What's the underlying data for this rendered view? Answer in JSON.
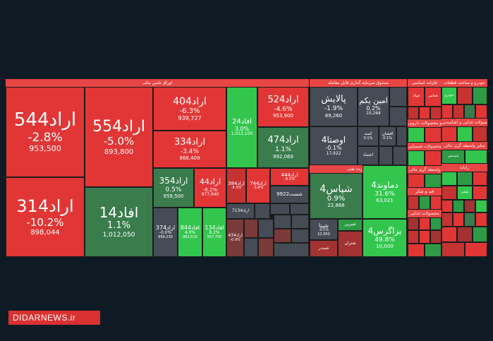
{
  "sections": {
    "bonds": "اوراق تامین مالی",
    "funds": "صندوق سرمایه گذاری قابل معامله",
    "metals": "فلزات اساسی",
    "cars": "خودرو و ساخت قطعات",
    "chemicals": "محصولات شیمیایی",
    "tech": "رایانه",
    "edible": "محصولات غذایی و آشامیدنی",
    "sugar": "قند و شکر",
    "oil": "فرآورده نفتی",
    "financial": "واسطه گری مالی",
    "pharma": "مواد و محصولات دارویی",
    "credit": "سایر واسطه گری مالی",
    "misc": "محصولات غذایی"
  },
  "tiles": {
    "arad544": {
      "name": "اراد544",
      "pct": "-2.8%",
      "vol": "953,500"
    },
    "arad554": {
      "name": "اراد554",
      "pct": "-5.0%",
      "vol": "893,800"
    },
    "arad404": {
      "name": "اراد404",
      "pct": "-6.3%",
      "vol": "939,727"
    },
    "arad334": {
      "name": "اراد334",
      "pct": "-3.4%",
      "vol": "868,409"
    },
    "afad24": {
      "name": "افاد24",
      "pct": "3.0%",
      "vol": "1,012,100"
    },
    "arad524": {
      "name": "اراد524",
      "pct": "-4.6%",
      "vol": "953,900"
    },
    "arad474": {
      "name": "اراد474",
      "pct": "1.1%",
      "vol": "992,069"
    },
    "arad314": {
      "name": "اراد314",
      "pct": "-10.2%",
      "vol": "898,044"
    },
    "afad14": {
      "name": "افاد14",
      "pct": "1.1%",
      "vol": "1,012,050"
    },
    "arad354": {
      "name": "اراد354",
      "pct": "0.5%",
      "vol": "959,500"
    },
    "arad44": {
      "name": "اراد44",
      "pct": "-6.2%",
      "vol": "977,940"
    },
    "arad384": {
      "name": "اراد384",
      "pct": "-8.3%"
    },
    "arad744": {
      "name": "اراد744",
      "pct": "-3.8%"
    },
    "arad444": {
      "name": "اراد444",
      "pct": "-8.5%"
    },
    "shast9922": {
      "name": "شست9922"
    },
    "arad374": {
      "name": "اراد374",
      "pct": "-0.0%",
      "vol": "999,230"
    },
    "afad844": {
      "name": "افاد844",
      "pct": "4.0%",
      "vol": "962,510"
    },
    "afad134": {
      "name": "افاد134",
      "pct": "8.2%",
      "vol": "957,750"
    },
    "arad7134": {
      "name": "اراد7134"
    },
    "arad434": {
      "name": "اراد434",
      "pct": "-0.9%"
    },
    "palayesh": {
      "name": "پالایش",
      "pct": "-1.9%",
      "vol": "89,260"
    },
    "aminyekom": {
      "name": "امین یکم",
      "pct": "0.2%",
      "vol": "10,264"
    },
    "ousta4": {
      "name": "اوصتا4",
      "pct": "-0.1%",
      "vol": "17,922"
    },
    "kamand": {
      "name": "کمند",
      "pct": "0.1%"
    },
    "afshan": {
      "name": "افشان",
      "pct": "0.1%"
    },
    "etemad": {
      "name": "اعتماد"
    },
    "shepas4": {
      "name": "شپاس4",
      "pct": "0.9%",
      "vol": "22,868"
    },
    "damavand4": {
      "name": "دماوند4",
      "pct": "31.6%",
      "vol": "63,021"
    },
    "shepna": {
      "name": "شپنا",
      "pct": "-0.1%",
      "vol": "12,950"
    },
    "shirin": {
      "name": "شیرین"
    },
    "bazargas4": {
      "name": "بزاگرس4",
      "pct": "49.8%",
      "vol": "10,000"
    },
    "shefan": {
      "name": "شفن"
    },
    "shatran": {
      "name": "شتران"
    },
    "fakhas": {
      "name": "فخاس"
    },
    "fooladh": {
      "name": "فولاد"
    },
    "khodro": {
      "name": "خودرو"
    },
    "shapdis": {
      "name": "شپدیس"
    },
    "shebandar": {
      "name": "شبندر"
    }
  },
  "watermark": "DIDARNEWS.ir"
}
